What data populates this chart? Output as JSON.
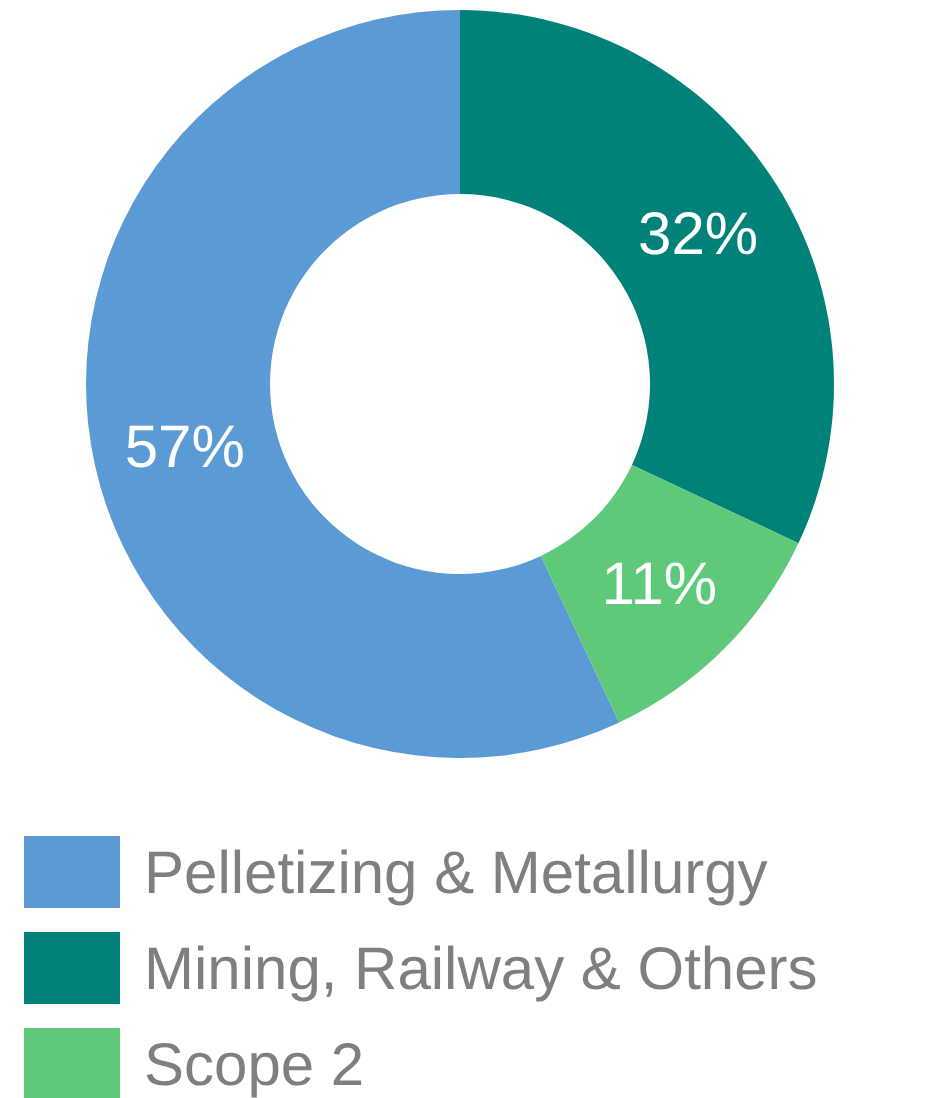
{
  "chart_data": {
    "type": "donut",
    "categories": [
      "Pelletizing & Metallurgy",
      "Mining, Railway & Others",
      "Scope 2"
    ],
    "values": [
      57,
      32,
      11
    ],
    "colors": [
      "#5b9bd5",
      "#00827a",
      "#5fc97a"
    ],
    "value_labels": [
      "57%",
      "32%",
      "11%"
    ],
    "legend": "bottom"
  }
}
